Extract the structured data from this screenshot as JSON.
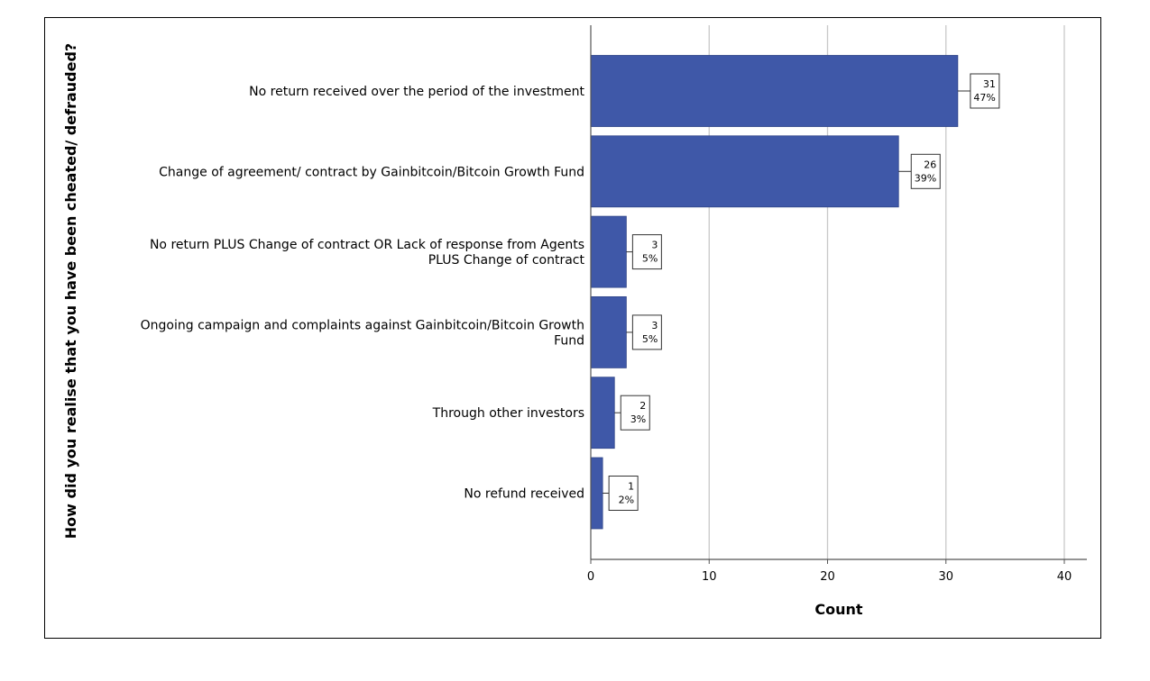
{
  "chart_data": {
    "type": "bar",
    "orientation": "horizontal",
    "xlabel": "Count",
    "ylabel": "How did you realise that you have been cheated/ defrauded?",
    "xlim": [
      0,
      42
    ],
    "xticks": [
      0,
      10,
      20,
      30,
      40
    ],
    "grid": true,
    "bar_color": "#3f58a8",
    "categories": [
      [
        "No return received over the period of the investment"
      ],
      [
        "Change of agreement/ contract by Gainbitcoin/Bitcoin Growth Fund"
      ],
      [
        "No return PLUS Change of contract OR Lack of response from Agents",
        "PLUS Change of contract"
      ],
      [
        "Ongoing campaign and complaints against Gainbitcoin/Bitcoin Growth",
        "Fund"
      ],
      [
        "Through other investors"
      ],
      [
        "No refund received"
      ]
    ],
    "values": [
      31,
      26,
      3,
      3,
      2,
      1
    ],
    "percents": [
      "47%",
      "39%",
      "5%",
      "5%",
      "3%",
      "2%"
    ]
  }
}
